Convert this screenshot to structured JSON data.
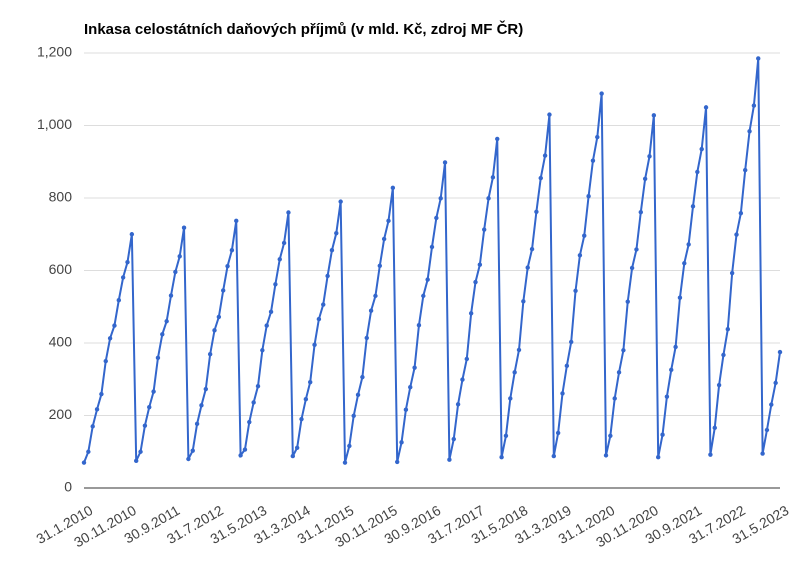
{
  "chart_data": {
    "type": "line",
    "title": "Inkasa celostátních daňových příjmů (v mld. Kč, zdroj MF ČR)",
    "categories": [
      "31.1.2010",
      null,
      null,
      null,
      null,
      null,
      null,
      null,
      null,
      null,
      "30.11.2010",
      null,
      null,
      null,
      null,
      null,
      null,
      null,
      null,
      null,
      "30.9.2011",
      null,
      null,
      null,
      null,
      null,
      null,
      null,
      null,
      null,
      "31.7.2012",
      null,
      null,
      null,
      null,
      null,
      null,
      null,
      null,
      null,
      "31.5.2013",
      null,
      null,
      null,
      null,
      null,
      null,
      null,
      null,
      null,
      "31.3.2014",
      null,
      null,
      null,
      null,
      null,
      null,
      null,
      null,
      null,
      "31.1.2015",
      null,
      null,
      null,
      null,
      null,
      null,
      null,
      null,
      null,
      "30.11.2015",
      null,
      null,
      null,
      null,
      null,
      null,
      null,
      null,
      null,
      "30.9.2016",
      null,
      null,
      null,
      null,
      null,
      null,
      null,
      null,
      null,
      "31.7.2017",
      null,
      null,
      null,
      null,
      null,
      null,
      null,
      null,
      null,
      "31.5.2018",
      null,
      null,
      null,
      null,
      null,
      null,
      null,
      null,
      null,
      "31.3.2019",
      null,
      null,
      null,
      null,
      null,
      null,
      null,
      null,
      null,
      "31.1.2020",
      null,
      null,
      null,
      null,
      null,
      null,
      null,
      null,
      null,
      "30.11.2020",
      null,
      null,
      null,
      null,
      null,
      null,
      null,
      null,
      null,
      "30.9.2021",
      null,
      null,
      null,
      null,
      null,
      null,
      null,
      null,
      null,
      "31.7.2022",
      null,
      null,
      null,
      null,
      null,
      null,
      null,
      null,
      null,
      "31.5.2023"
    ],
    "values": [
      70,
      100,
      170,
      217,
      259,
      350,
      413,
      448,
      518,
      581,
      623,
      700,
      75,
      100,
      172,
      223,
      266,
      359,
      424,
      460,
      531,
      596,
      639,
      718,
      80,
      103,
      177,
      228,
      273,
      369,
      435,
      472,
      545,
      612,
      656,
      737,
      90,
      106,
      182,
      236,
      281,
      380,
      448,
      486,
      562,
      631,
      676,
      760,
      88,
      111,
      190,
      245,
      292,
      395,
      466,
      506,
      585,
      656,
      703,
      790,
      70,
      116,
      199,
      257,
      306,
      414,
      489,
      530,
      613,
      687,
      737,
      828,
      72,
      126,
      216,
      278,
      332,
      449,
      530,
      575,
      665,
      745,
      799,
      898,
      78,
      135,
      231,
      299,
      356,
      482,
      568,
      616,
      713,
      799,
      857,
      963,
      85,
      144,
      247,
      319,
      381,
      515,
      608,
      659,
      762,
      855,
      917,
      1030,
      88,
      152,
      261,
      337,
      403,
      544,
      642,
      696,
      805,
      903,
      968,
      1088,
      90,
      144,
      247,
      319,
      380,
      514,
      607,
      658,
      761,
      853,
      915,
      1028,
      85,
      147,
      252,
      326,
      389,
      525,
      620,
      672,
      777,
      872,
      935,
      1050,
      92,
      166,
      284,
      367,
      438,
      593,
      699,
      758,
      877,
      984,
      1055,
      1185,
      95,
      160,
      230,
      290,
      375
    ],
    "color": "#3366cc",
    "ylim": [
      0,
      1200
    ],
    "yticks": [
      0,
      200,
      400,
      600,
      800,
      {
        "value": 1000,
        "label": "1,000"
      },
      {
        "value": 1200,
        "label": "1,200"
      }
    ],
    "grid": true
  }
}
